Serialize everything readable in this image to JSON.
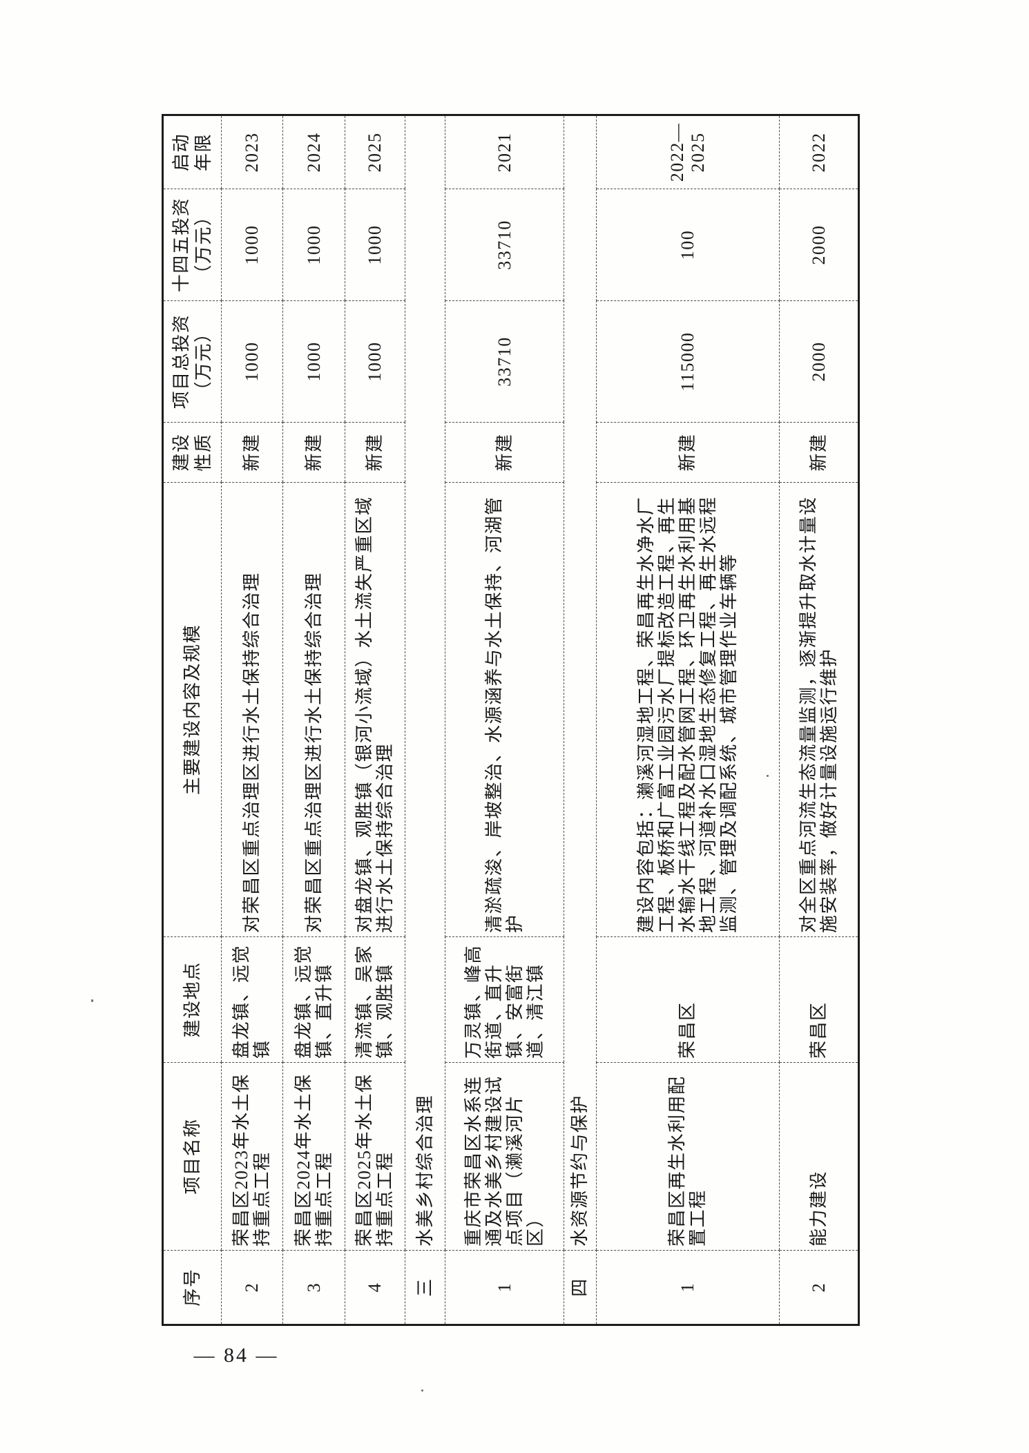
{
  "page": {
    "number_label": "— 84 —"
  },
  "table": {
    "columns": [
      "序号",
      "项目名称",
      "建设地点",
      "主要建设内容及规模",
      "建设性质",
      "项目总投资（万元）",
      "十四五投资（万元）",
      "启动年限"
    ],
    "rows": [
      {
        "type": "data",
        "no": "2",
        "name": "荣昌区2023年水土保持重点工程",
        "location": "盘龙镇、远觉镇",
        "content": "对荣昌区重点治理区进行水土保持综合治理",
        "nature": "新建",
        "total": "1000",
        "plan": "1000",
        "year": "2023"
      },
      {
        "type": "data",
        "no": "3",
        "name": "荣昌区2024年水土保持重点工程",
        "location": "盘龙镇、远觉镇、直升镇",
        "content": "对荣昌区重点治理区进行水土保持综合治理",
        "nature": "新建",
        "total": "1000",
        "plan": "1000",
        "year": "2024"
      },
      {
        "type": "data",
        "no": "4",
        "name": "荣昌区2025年水土保持重点工程",
        "location": "清流镇、吴家镇、观胜镇",
        "content": "对盘龙镇、观胜镇（银河小流域）水土流失严重区域进行水土保持综合治理",
        "nature": "新建",
        "total": "1000",
        "plan": "1000",
        "year": "2025"
      },
      {
        "type": "section",
        "no": "三",
        "title": "水美乡村综合治理"
      },
      {
        "type": "data",
        "no": "1",
        "name": "重庆市荣昌区水系连通及水美乡村建设试点项目（濑溪河片区）",
        "location": "万灵镇、峰高街道、直升镇、安富街道、清江镇",
        "content": "清淤疏浚、岸坡整治、水源涵养与水土保持、河湖管护",
        "nature": "新建",
        "total": "33710",
        "plan": "33710",
        "year": "2021"
      },
      {
        "type": "section",
        "no": "四",
        "title": "水资源节约与保护"
      },
      {
        "type": "data",
        "no": "1",
        "name": "荣昌区再生水利用配置工程",
        "location": "荣昌区",
        "content": "建设内容包括：濑溪河湿地工程、荣昌再生水净水厂工程、板桥和广富工业园污水厂提标改造工程、再生水输水干线工程及配水管网工程、环卫再生水利用基地工程、河道补水口湿地生态修复工程、再生水远程监测、管理及调配系统、城市管理作业车辆等",
        "nature": "新建",
        "total": "115000",
        "plan": "100",
        "year": "2022—2025"
      },
      {
        "type": "data",
        "no": "2",
        "name": "能力建设",
        "location": "荣昌区",
        "content": "对全区重点河流生态流量监测，逐渐提升取水计量设施安装率，做好计量设施运行维护",
        "nature": "新建",
        "total": "2000",
        "plan": "2000",
        "year": "2022"
      }
    ]
  }
}
